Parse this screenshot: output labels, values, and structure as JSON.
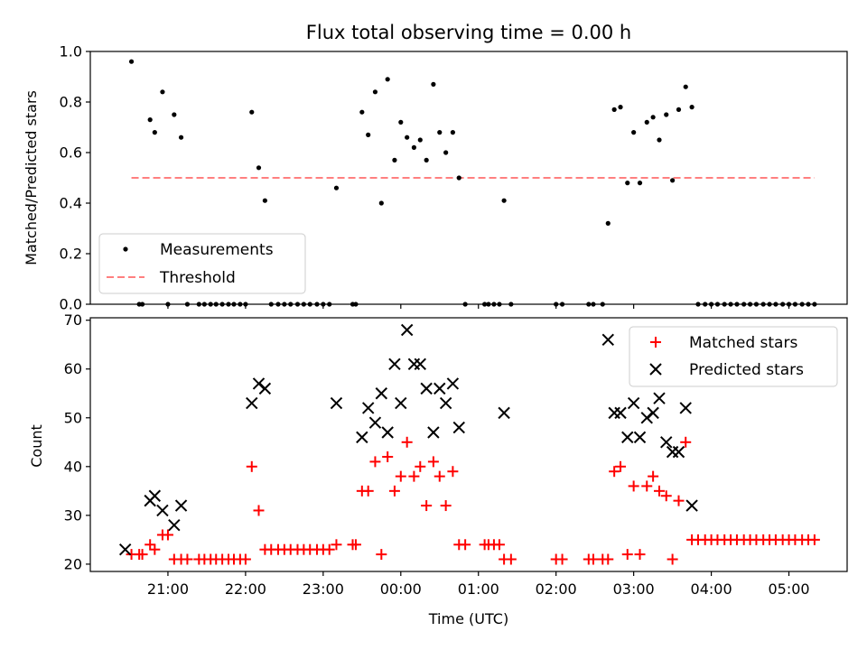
{
  "chart_data": [
    {
      "type": "scatter",
      "title": "Flux total observing time = 0.00 h",
      "ylabel": "Matched/Predicted stars",
      "ylim": [
        0,
        1.0
      ],
      "yticks": [
        "0.0",
        "0.2",
        "0.4",
        "0.6",
        "0.8",
        "1.0"
      ],
      "legend": "bottom-left",
      "series": [
        {
          "name": "Measurements",
          "color": "#000000",
          "marker": "dot",
          "x": [
            20.53,
            20.63,
            20.67,
            20.77,
            20.83,
            20.93,
            21.0,
            21.08,
            21.17,
            21.25,
            21.4,
            21.47,
            21.55,
            21.62,
            21.7,
            21.78,
            21.85,
            21.93,
            22.0,
            22.08,
            22.17,
            22.25,
            22.33,
            22.42,
            22.5,
            22.58,
            22.67,
            22.75,
            22.83,
            22.92,
            23.0,
            23.08,
            23.17,
            23.38,
            23.42,
            23.5,
            23.58,
            23.67,
            23.75,
            23.83,
            23.92,
            24.0,
            24.08,
            24.17,
            24.25,
            24.33,
            24.42,
            24.5,
            24.58,
            24.67,
            24.75,
            24.83,
            25.08,
            25.13,
            25.2,
            25.27,
            25.33,
            25.42,
            26.0,
            26.08,
            26.42,
            26.48,
            26.6,
            26.67,
            26.75,
            26.83,
            26.92,
            27.0,
            27.08,
            27.17,
            27.25,
            27.33,
            27.42,
            27.5,
            27.58,
            27.67,
            27.75,
            27.83,
            27.92,
            28.0,
            28.08,
            28.17,
            28.25,
            28.33,
            28.42,
            28.5,
            28.58,
            28.67,
            28.75,
            28.83,
            28.92,
            29.0,
            29.08,
            29.17,
            29.25,
            29.33
          ],
          "y": [
            0.96,
            0.0,
            0.0,
            0.73,
            0.68,
            0.84,
            0.0,
            0.75,
            0.66,
            0.0,
            0.0,
            0.0,
            0.0,
            0.0,
            0.0,
            0.0,
            0.0,
            0.0,
            0.0,
            0.76,
            0.54,
            0.41,
            0.0,
            0.0,
            0.0,
            0.0,
            0.0,
            0.0,
            0.0,
            0.0,
            0.0,
            0.0,
            0.46,
            0.0,
            0.0,
            0.76,
            0.67,
            0.84,
            0.4,
            0.89,
            0.57,
            0.72,
            0.66,
            0.62,
            0.65,
            0.57,
            0.87,
            0.68,
            0.6,
            0.68,
            0.5,
            0.0,
            0.0,
            0.0,
            0.0,
            0.0,
            0.41,
            0.0,
            0.0,
            0.0,
            0.0,
            0.0,
            0.0,
            0.32,
            0.77,
            0.78,
            0.48,
            0.68,
            0.48,
            0.72,
            0.74,
            0.65,
            0.75,
            0.49,
            0.77,
            0.86,
            0.78,
            0.0,
            0.0,
            0.0,
            0.0,
            0.0,
            0.0,
            0.0,
            0.0,
            0.0,
            0.0,
            0.0,
            0.0,
            0.0,
            0.0,
            0.0,
            0.0,
            0.0,
            0.0,
            0.0
          ]
        },
        {
          "name": "Threshold",
          "color": "#ff7f7f",
          "marker": "dashed-line",
          "x": [
            20.53,
            29.33
          ],
          "y": [
            0.5,
            0.5
          ]
        }
      ]
    },
    {
      "type": "scatter",
      "xlabel": "Time (UTC)",
      "ylabel": "Count",
      "ylim": [
        18.5,
        70.5
      ],
      "xlim": [
        20.0,
        29.75
      ],
      "yticks": [
        "20",
        "30",
        "40",
        "50",
        "60",
        "70"
      ],
      "xticks": [
        {
          "x": 21.0,
          "label": "21:00"
        },
        {
          "x": 22.0,
          "label": "22:00"
        },
        {
          "x": 23.0,
          "label": "23:00"
        },
        {
          "x": 24.0,
          "label": "00:00"
        },
        {
          "x": 25.0,
          "label": "01:00"
        },
        {
          "x": 26.0,
          "label": "02:00"
        },
        {
          "x": 27.0,
          "label": "03:00"
        },
        {
          "x": 28.0,
          "label": "04:00"
        },
        {
          "x": 29.0,
          "label": "05:00"
        }
      ],
      "legend": "top-right",
      "series": [
        {
          "name": "Matched stars",
          "color": "#ff0000",
          "marker": "plus",
          "x": [
            20.53,
            20.63,
            20.67,
            20.77,
            20.83,
            20.93,
            21.0,
            21.08,
            21.17,
            21.25,
            21.4,
            21.47,
            21.55,
            21.62,
            21.7,
            21.78,
            21.85,
            21.93,
            22.0,
            22.08,
            22.17,
            22.25,
            22.33,
            22.42,
            22.5,
            22.58,
            22.67,
            22.75,
            22.83,
            22.92,
            23.0,
            23.08,
            23.17,
            23.38,
            23.42,
            23.5,
            23.58,
            23.67,
            23.75,
            23.83,
            23.92,
            24.0,
            24.08,
            24.17,
            24.25,
            24.33,
            24.42,
            24.5,
            24.58,
            24.67,
            24.75,
            24.83,
            25.08,
            25.13,
            25.2,
            25.27,
            25.33,
            25.42,
            26.0,
            26.08,
            26.42,
            26.48,
            26.6,
            26.67,
            26.75,
            26.83,
            26.92,
            27.0,
            27.08,
            27.17,
            27.25,
            27.33,
            27.42,
            27.5,
            27.58,
            27.67,
            27.75,
            27.83,
            27.92,
            28.0,
            28.08,
            28.17,
            28.25,
            28.33,
            28.42,
            28.5,
            28.58,
            28.67,
            28.75,
            28.83,
            28.92,
            29.0,
            29.08,
            29.17,
            29.25,
            29.33
          ],
          "y": [
            22,
            22,
            22,
            24,
            23,
            26,
            26,
            21,
            21,
            21,
            21,
            21,
            21,
            21,
            21,
            21,
            21,
            21,
            21,
            40,
            31,
            23,
            23,
            23,
            23,
            23,
            23,
            23,
            23,
            23,
            23,
            23,
            24,
            24,
            24,
            35,
            35,
            41,
            22,
            42,
            35,
            38,
            45,
            38,
            40,
            32,
            41,
            38,
            32,
            39,
            24,
            24,
            24,
            24,
            24,
            24,
            21,
            21,
            21,
            21,
            21,
            21,
            21,
            21,
            39,
            40,
            22,
            36,
            22,
            36,
            38,
            35,
            34,
            21,
            33,
            45,
            25,
            25,
            25,
            25,
            25,
            25,
            25,
            25,
            25,
            25,
            25,
            25,
            25,
            25,
            25,
            25,
            25,
            25,
            25,
            25
          ]
        },
        {
          "name": "Predicted stars",
          "color": "#000000",
          "marker": "x",
          "x": [
            20.45,
            20.77,
            20.83,
            20.93,
            21.08,
            21.17,
            22.08,
            22.17,
            22.25,
            23.17,
            23.5,
            23.58,
            23.67,
            23.75,
            23.83,
            23.92,
            24.0,
            24.08,
            24.17,
            24.25,
            24.33,
            24.42,
            24.5,
            24.58,
            24.67,
            24.75,
            25.33,
            26.67,
            26.75,
            26.83,
            26.92,
            27.0,
            27.08,
            27.17,
            27.25,
            27.33,
            27.42,
            27.5,
            27.58,
            27.67,
            27.75
          ],
          "y": [
            23,
            33,
            34,
            31,
            28,
            32,
            53,
            57,
            56,
            53,
            46,
            52,
            49,
            55,
            47,
            61,
            53,
            68,
            61,
            61,
            56,
            47,
            56,
            53,
            57,
            48,
            51,
            66,
            51,
            51,
            46,
            53,
            46,
            50,
            51,
            54,
            45,
            43,
            43,
            52,
            32
          ]
        }
      ]
    }
  ]
}
